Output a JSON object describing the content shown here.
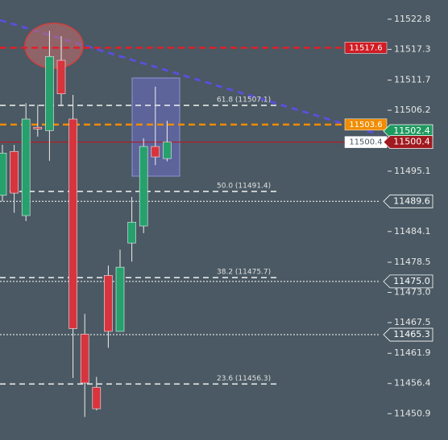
{
  "chart_data": {
    "type": "candlestick",
    "open": [
      11490.7,
      11498.7,
      11487.0,
      11503.1,
      11502.5,
      11515.3,
      11504.6,
      11465.4,
      11455.7,
      11476.1,
      11465.9,
      11482.0,
      11485.1,
      11499.6,
      11497.4
    ],
    "high": [
      11499.9,
      11499.9,
      11507.5,
      11507.2,
      11520.7,
      11519.7,
      11509.0,
      11469.1,
      11457.6,
      11477.9,
      11480.8,
      11490.4,
      11501.1,
      11510.5,
      11504.3
    ],
    "low": [
      11489.6,
      11487.5,
      11486.0,
      11501.4,
      11497.0,
      11507.2,
      11457.4,
      11450.3,
      11451.5,
      11462.9,
      11465.9,
      11478.6,
      11483.8,
      11496.2,
      11496.9
    ],
    "close": [
      11498.4,
      11491.1,
      11504.6,
      11502.8,
      11516.0,
      11509.2,
      11466.4,
      11456.5,
      11451.8,
      11465.9,
      11477.6,
      11485.8,
      11499.6,
      11497.7,
      11500.4
    ],
    "up_color": "#26a06d",
    "down_color": "#d8343d",
    "ylim": [
      11446.1,
      11526.3
    ],
    "yticks": [
      11522.8,
      11517.3,
      11511.7,
      11506.2,
      11495.1,
      11484.1,
      11478.5,
      {
        "value": 11473,
        "label": "11473.0"
      },
      11467.5,
      11461.9,
      11456.4,
      11450.9
    ],
    "fib_levels": [
      {
        "label": "61.8 (11507.1)",
        "value": 11507.1
      },
      {
        "label": "50.0 (11491.4)",
        "value": 11491.4
      },
      {
        "label": "38.2 (11475.7)",
        "value": 11475.7
      },
      {
        "label": "23.6 (11456.3)",
        "value": 11456.3
      }
    ],
    "price_lines": [
      {
        "value": 11517.6,
        "color": "#e0202a",
        "style": "dashed"
      },
      {
        "value": 11503.6,
        "color": "#f08c00",
        "style": "dashed"
      },
      {
        "value": 11500.4,
        "color": "#b02028",
        "style": "solid"
      },
      {
        "value": 11489.6,
        "color": "#ffffff",
        "style": "dotted"
      },
      {
        "value": 11475,
        "color": "#ffffff",
        "style": "dotted"
      },
      {
        "value": 11465.3,
        "color": "#ffffff",
        "style": "dotted"
      }
    ],
    "tags": [
      {
        "value": 11517.6,
        "color": "#d01c24",
        "text_color": "#ffffff",
        "place": "inline"
      },
      {
        "value": 11503.6,
        "color": "#f08c00",
        "text_color": "#ffffff",
        "place": "inline"
      },
      {
        "value": 11500.4,
        "color": "#ffffff",
        "text_color": "#4a5963",
        "place": "inline"
      },
      {
        "value": 11502.4,
        "color": "#1f9a60",
        "text_color": "#ffffff",
        "place": "axis"
      },
      {
        "value": 11500.4,
        "color": "#a01a20",
        "text_color": "#ffffff",
        "place": "axis"
      },
      {
        "value": 11489.6,
        "color": "#4a5963",
        "text_color": "#ffffff",
        "place": "axis"
      },
      {
        "value": 11475,
        "label": "11475.0",
        "color": "#4a5963",
        "text_color": "#ffffff",
        "place": "axis"
      },
      {
        "value": 11465.3,
        "color": "#4a5963",
        "text_color": "#ffffff",
        "place": "axis"
      }
    ]
  }
}
